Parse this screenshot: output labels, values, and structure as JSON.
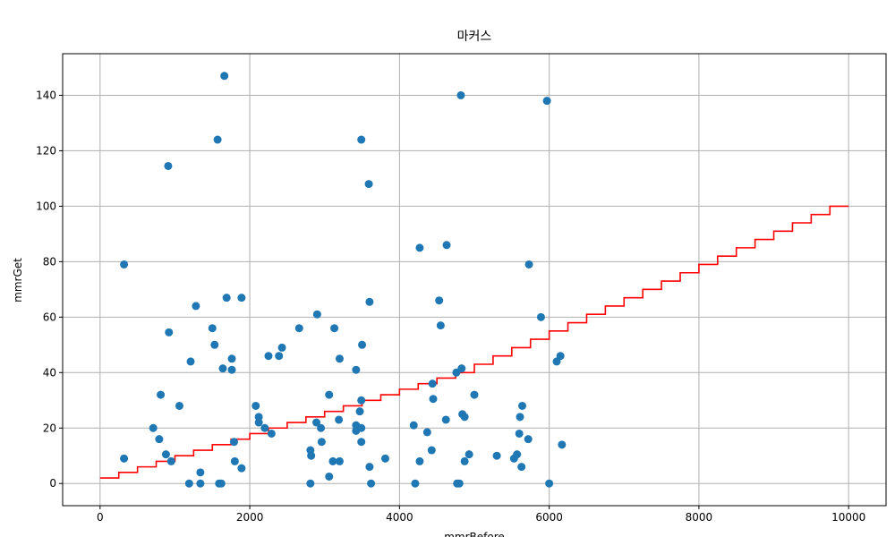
{
  "chart_data": {
    "type": "scatter",
    "title": "마커스",
    "xlabel": "mmrBefore",
    "ylabel": "mmrGet",
    "xlim": [
      -500,
      10500
    ],
    "ylim": [
      -8,
      155
    ],
    "xticks": [
      0,
      2000,
      4000,
      6000,
      8000,
      10000
    ],
    "yticks": [
      0,
      20,
      40,
      60,
      80,
      100,
      120,
      140
    ],
    "grid": true,
    "colors": {
      "points": "#1f77b4",
      "step_line": "#ff0000",
      "grid": "#b0b0b0"
    },
    "points": [
      {
        "x": 1660,
        "y": 147
      },
      {
        "x": 1570,
        "y": 124
      },
      {
        "x": 3490,
        "y": 124
      },
      {
        "x": 4820,
        "y": 140
      },
      {
        "x": 5970,
        "y": 138
      },
      {
        "x": 910,
        "y": 114.5
      },
      {
        "x": 3590,
        "y": 108
      },
      {
        "x": 320,
        "y": 79
      },
      {
        "x": 4270,
        "y": 85
      },
      {
        "x": 4630,
        "y": 86
      },
      {
        "x": 5730,
        "y": 79
      },
      {
        "x": 1690,
        "y": 67
      },
      {
        "x": 1890,
        "y": 67
      },
      {
        "x": 1280,
        "y": 64
      },
      {
        "x": 3600,
        "y": 65.5
      },
      {
        "x": 4530,
        "y": 66
      },
      {
        "x": 2900,
        "y": 61
      },
      {
        "x": 5890,
        "y": 60
      },
      {
        "x": 920,
        "y": 54.5
      },
      {
        "x": 1500,
        "y": 56
      },
      {
        "x": 2660,
        "y": 56
      },
      {
        "x": 3130,
        "y": 56
      },
      {
        "x": 4550,
        "y": 57
      },
      {
        "x": 1530,
        "y": 50
      },
      {
        "x": 2430,
        "y": 49
      },
      {
        "x": 3500,
        "y": 50
      },
      {
        "x": 1210,
        "y": 44
      },
      {
        "x": 1760,
        "y": 45
      },
      {
        "x": 2250,
        "y": 46
      },
      {
        "x": 2390,
        "y": 46
      },
      {
        "x": 3200,
        "y": 45
      },
      {
        "x": 6150,
        "y": 46
      },
      {
        "x": 6100,
        "y": 44
      },
      {
        "x": 1640,
        "y": 41.5
      },
      {
        "x": 1760,
        "y": 41
      },
      {
        "x": 3420,
        "y": 41
      },
      {
        "x": 4760,
        "y": 40
      },
      {
        "x": 4830,
        "y": 41.5
      },
      {
        "x": 810,
        "y": 32
      },
      {
        "x": 3060,
        "y": 32
      },
      {
        "x": 4440,
        "y": 36
      },
      {
        "x": 5000,
        "y": 32
      },
      {
        "x": 1060,
        "y": 28
      },
      {
        "x": 2080,
        "y": 28
      },
      {
        "x": 3490,
        "y": 30
      },
      {
        "x": 4450,
        "y": 30.5
      },
      {
        "x": 5640,
        "y": 28
      },
      {
        "x": 710,
        "y": 20
      },
      {
        "x": 2120,
        "y": 24
      },
      {
        "x": 2120,
        "y": 22
      },
      {
        "x": 2200,
        "y": 20
      },
      {
        "x": 2290,
        "y": 18
      },
      {
        "x": 2890,
        "y": 22
      },
      {
        "x": 2950,
        "y": 20
      },
      {
        "x": 3190,
        "y": 23
      },
      {
        "x": 3420,
        "y": 21
      },
      {
        "x": 3420,
        "y": 19
      },
      {
        "x": 3470,
        "y": 26
      },
      {
        "x": 3490,
        "y": 20
      },
      {
        "x": 4190,
        "y": 21
      },
      {
        "x": 4370,
        "y": 18.5
      },
      {
        "x": 4620,
        "y": 23
      },
      {
        "x": 4840,
        "y": 25
      },
      {
        "x": 4870,
        "y": 24
      },
      {
        "x": 5600,
        "y": 18
      },
      {
        "x": 5610,
        "y": 24
      },
      {
        "x": 5720,
        "y": 16
      },
      {
        "x": 790,
        "y": 16
      },
      {
        "x": 1790,
        "y": 15
      },
      {
        "x": 2960,
        "y": 15
      },
      {
        "x": 3490,
        "y": 15
      },
      {
        "x": 2810,
        "y": 12
      },
      {
        "x": 2820,
        "y": 10
      },
      {
        "x": 4430,
        "y": 12
      },
      {
        "x": 4930,
        "y": 10.5
      },
      {
        "x": 5300,
        "y": 10
      },
      {
        "x": 5530,
        "y": 9
      },
      {
        "x": 5570,
        "y": 10.5
      },
      {
        "x": 320,
        "y": 9
      },
      {
        "x": 880,
        "y": 10.5
      },
      {
        "x": 950,
        "y": 8
      },
      {
        "x": 1800,
        "y": 8
      },
      {
        "x": 1890,
        "y": 5.5
      },
      {
        "x": 3110,
        "y": 8
      },
      {
        "x": 3200,
        "y": 8
      },
      {
        "x": 3600,
        "y": 6
      },
      {
        "x": 3810,
        "y": 9
      },
      {
        "x": 4270,
        "y": 8
      },
      {
        "x": 4870,
        "y": 8
      },
      {
        "x": 5630,
        "y": 6
      },
      {
        "x": 1340,
        "y": 4
      },
      {
        "x": 3060,
        "y": 2.5
      },
      {
        "x": 1190,
        "y": 0
      },
      {
        "x": 1340,
        "y": 0
      },
      {
        "x": 1590,
        "y": 0
      },
      {
        "x": 1620,
        "y": 0
      },
      {
        "x": 2810,
        "y": 0
      },
      {
        "x": 3620,
        "y": 0
      },
      {
        "x": 4210,
        "y": 0
      },
      {
        "x": 4770,
        "y": 0
      },
      {
        "x": 4800,
        "y": 0
      },
      {
        "x": 6000,
        "y": 0
      },
      {
        "x": 6170,
        "y": 14
      }
    ],
    "step_line": {
      "x_start": 0,
      "x_end": 10000,
      "x_step": 250,
      "y_values": [
        2,
        4,
        6,
        8,
        10,
        12,
        14,
        16,
        18,
        20,
        22,
        24,
        26,
        28,
        30,
        32,
        34,
        36,
        38,
        40,
        43,
        46,
        49,
        52,
        55,
        58,
        61,
        64,
        67,
        70,
        73,
        76,
        79,
        82,
        85,
        88,
        91,
        94,
        97,
        100
      ]
    }
  }
}
